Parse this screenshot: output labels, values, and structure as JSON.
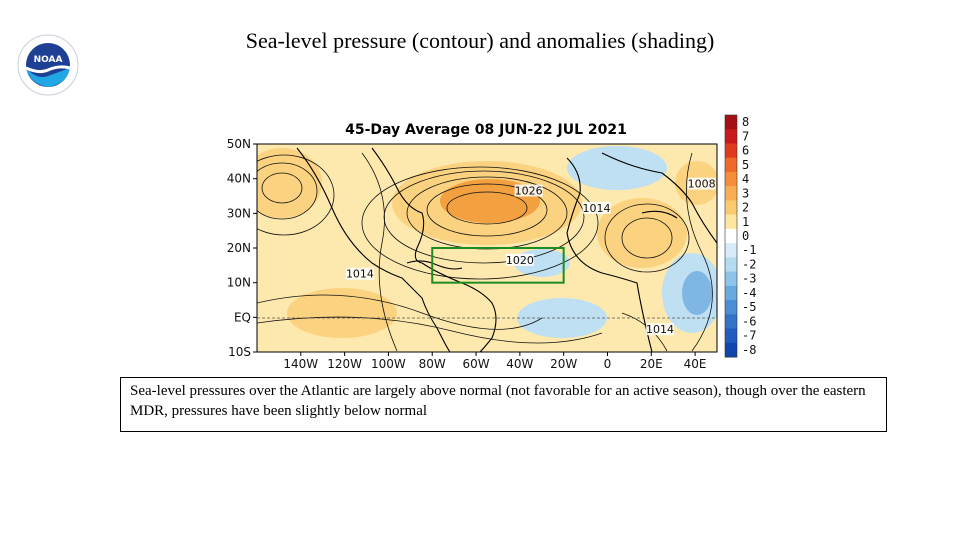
{
  "slide": {
    "title": "Sea-level pressure (contour) and anomalies (shading)",
    "logo_text": "NOAA",
    "caption": "Sea-level pressures over the Atlantic are largely  above normal (not favorable for an active season), though over the eastern MDR, pressures have been slightly  below normal"
  },
  "chart_data": {
    "type": "heatmap",
    "title": "45-Day Average 08 JUN-22 JUL 2021",
    "x_ticks": [
      "140W",
      "120W",
      "100W",
      "80W",
      "60W",
      "40W",
      "20W",
      "0",
      "20E",
      "40E"
    ],
    "y_ticks": [
      "50N",
      "40N",
      "30N",
      "20N",
      "10N",
      "EQ",
      "10S"
    ],
    "colorbar": {
      "levels": [
        "8",
        "7",
        "6",
        "5",
        "4",
        "3",
        "2",
        "1",
        "0",
        "-1",
        "-2",
        "-3",
        "-4",
        "-5",
        "-6",
        "-7",
        "-8"
      ],
      "colors": [
        "#a50f15",
        "#cb181d",
        "#e03a1e",
        "#ef6a2a",
        "#f58d3a",
        "#f9ad52",
        "#fbca6f",
        "#fde7a0",
        "#ffffff",
        "#d6ecf8",
        "#b5dbf0",
        "#8ec4ea",
        "#68a9df",
        "#4a8fd4",
        "#3174c8",
        "#1f5cbd",
        "#0f46ad"
      ]
    },
    "contour_labels": [
      {
        "text": "1026",
        "lon": -36,
        "lat": 36
      },
      {
        "text": "1020",
        "lon": -40,
        "lat": 16
      },
      {
        "text": "1014",
        "lon": -5,
        "lat": 31
      },
      {
        "text": "1014",
        "lon": -113,
        "lat": 12
      },
      {
        "text": "1014",
        "lon": 24,
        "lat": -4
      },
      {
        "text": "1008",
        "lon": 43,
        "lat": 38
      }
    ],
    "mdr_box": {
      "lon_min": -80,
      "lon_max": -20,
      "lat_min": 10,
      "lat_max": 20,
      "color": "#1e8c1e"
    },
    "anomaly_colors": {
      "strong_positive": "#f2a040",
      "positive": "#fbd27f",
      "weak_positive": "#fde9ae",
      "negative": "#bfdff2",
      "strong_negative": "#7fb6e3"
    }
  }
}
